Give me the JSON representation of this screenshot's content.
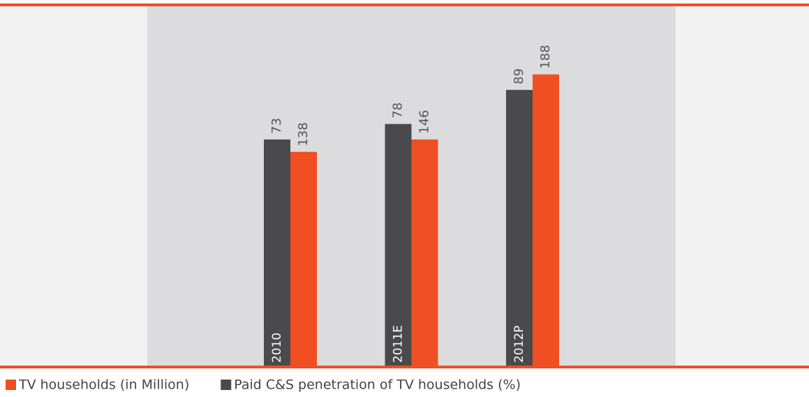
{
  "chart_data": {
    "type": "bar",
    "categories": [
      "2010",
      "2011E",
      "2012P"
    ],
    "series": [
      {
        "name": "TV households (in Million)",
        "color": "#f04e23",
        "values": [
          138,
          146,
          188
        ]
      },
      {
        "name": "Paid C&S penetration of TV households (%)",
        "color": "#4a4a4c",
        "values": [
          73,
          78,
          89
        ],
        "axis": "y2"
      }
    ],
    "ylim": [
      0,
      200
    ],
    "y2lim": [
      0,
      100
    ]
  }
}
